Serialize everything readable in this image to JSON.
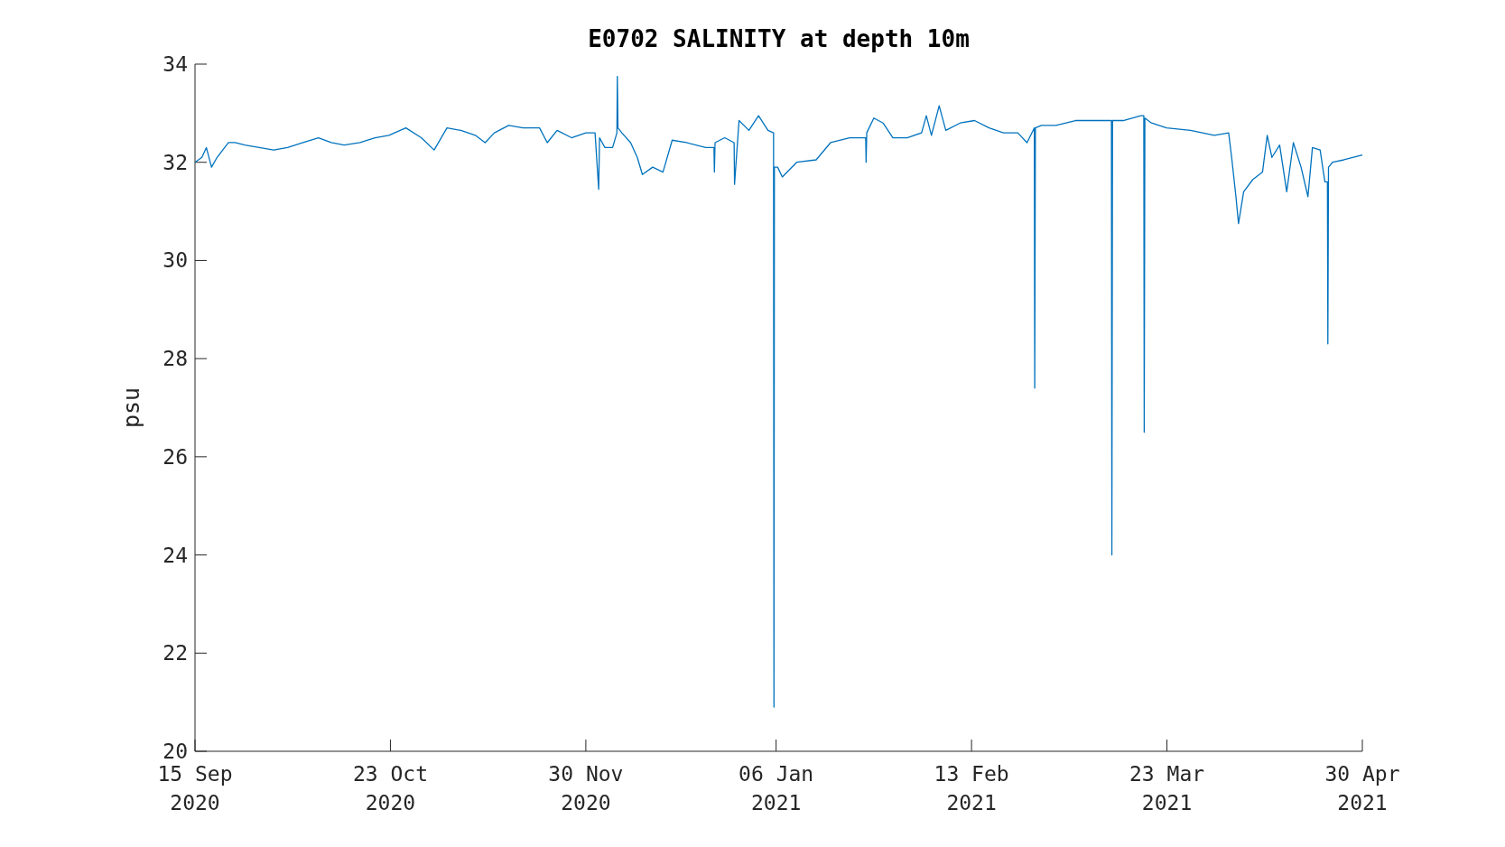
{
  "chart_data": {
    "type": "line",
    "title": "E0702 SALINITY at depth 10m",
    "ylabel": "psu",
    "xlim": [
      "2020-09-15",
      "2021-04-30"
    ],
    "xticks": [
      {
        "value": "2020-09-15",
        "label": "15 Sep\n2020"
      },
      {
        "value": "2020-10-23",
        "label": "23 Oct\n2020"
      },
      {
        "value": "2020-11-30",
        "label": "30 Nov\n2020"
      },
      {
        "value": "2021-01-06",
        "label": "06 Jan\n2021"
      },
      {
        "value": "2021-02-13",
        "label": "13 Feb\n2021"
      },
      {
        "value": "2021-03-23",
        "label": "23 Mar\n2021"
      },
      {
        "value": "2021-04-30",
        "label": "30 Apr\n2021"
      }
    ],
    "ylim": [
      20,
      34
    ],
    "yticks": [
      20,
      22,
      24,
      26,
      28,
      30,
      32,
      34
    ],
    "grid": false,
    "line_style": "solid",
    "series": [
      {
        "color": "#0072bd",
        "x": [
          "2020-09-15T00:00",
          "2020-09-16T08:00",
          "2020-09-17T05:00",
          "2020-09-18T05:00",
          "2020-09-19T07:00",
          "2020-09-21T12:00",
          "2020-09-22T19:00",
          "2020-09-24T17:00",
          "2020-09-27T12:00",
          "2020-09-30T07:00",
          "2020-10-03T00:00",
          "2020-10-06T00:00",
          "2020-10-09T00:00",
          "2020-10-11T12:00",
          "2020-10-14T00:00",
          "2020-10-17T02:00",
          "2020-10-20T00:00",
          "2020-10-22T17:00",
          "2020-10-26T00:00",
          "2020-10-29T00:00",
          "2020-10-31T12:00",
          "2020-11-03T00:00",
          "2020-11-05T17:00",
          "2020-11-08T12:00",
          "2020-11-10T10:00",
          "2020-11-12T05:00",
          "2020-11-15T00:00",
          "2020-11-17T19:00",
          "2020-11-21T00:00",
          "2020-11-22T12:00",
          "2020-11-24T10:00",
          "2020-11-27T05:00",
          "2020-11-30T00:00",
          "2020-12-01T19:00",
          "2020-12-02T12:00",
          "2020-12-02T16:00",
          "2020-12-03T17:00",
          "2020-12-05T05:00",
          "2020-12-06T01:00",
          "2020-12-06T03:00",
          "2020-12-06T06:00",
          "2020-12-07T00:00",
          "2020-12-08T17:00",
          "2020-12-10T00:00",
          "2020-12-11T00:00",
          "2020-12-13T00:00",
          "2020-12-15T00:00",
          "2020-12-16T19:00",
          "2020-12-19T14:00",
          "2020-12-23T07:00",
          "2020-12-24T22:00",
          "2020-12-25T00:00",
          "2020-12-25T03:00",
          "2020-12-27T00:00",
          "2020-12-28T20:00",
          "2020-12-28T22:00",
          "2020-12-29T19:00",
          "2020-12-31T17:00",
          "2021-01-02T14:00",
          "2021-01-04T10:00",
          "2021-01-05T12:00",
          "2021-01-05T14:00",
          "2021-01-05T16:00",
          "2021-01-06T07:00",
          "2021-01-07T05:00",
          "2021-01-10T00:00",
          "2021-01-13T19:00",
          "2021-01-16T14:00",
          "2021-01-20T07:00",
          "2021-01-23T10:00",
          "2021-01-23T12:00",
          "2021-01-23T15:00",
          "2021-01-25T00:00",
          "2021-01-26T19:00",
          "2021-01-28T17:00",
          "2021-01-31T12:00",
          "2021-02-03T07:00",
          "2021-02-04T05:00",
          "2021-02-05T05:00",
          "2021-02-06T17:00",
          "2021-02-08T00:00",
          "2021-02-10T19:00",
          "2021-02-13T14:00",
          "2021-02-16T10:00",
          "2021-02-19T05:00",
          "2021-02-22T00:00",
          "2021-02-23T19:00",
          "2021-02-25T05:00",
          "2021-02-25T07:00",
          "2021-02-25T10:00",
          "2021-02-26T14:00",
          "2021-03-01T10:00",
          "2021-03-05T05:00",
          "2021-03-09T00:00",
          "2021-03-12T05:00",
          "2021-03-12T07:00",
          "2021-03-12T10:00",
          "2021-03-14T12:00",
          "2021-03-17T22:00",
          "2021-03-18T12:00",
          "2021-03-18T14:00",
          "2021-03-18T17:00",
          "2021-03-20T00:00",
          "2021-03-22T22:00",
          "2021-03-27T14:00",
          "2021-04-01T05:00",
          "2021-04-04T00:00",
          "2021-04-04T14:00",
          "2021-04-05T10:00",
          "2021-04-05T22:00",
          "2021-04-06T22:00",
          "2021-04-08T17:00",
          "2021-04-10T14:00",
          "2021-04-11T12:00",
          "2021-04-12T10:00",
          "2021-04-13T22:00",
          "2021-04-15T07:00",
          "2021-04-16T14:00",
          "2021-04-18T02:00",
          "2021-04-19T10:00",
          "2021-04-20T07:00",
          "2021-04-21T19:00",
          "2021-04-22T17:00",
          "2021-04-23T05:00",
          "2021-04-23T07:00",
          "2021-04-23T10:00",
          "2021-04-24T05:00",
          "2021-04-26T10:00",
          "2021-04-30T00:00"
        ],
        "values": [
          32.0,
          32.1,
          32.3,
          31.9,
          32.1,
          32.4,
          32.4,
          32.35,
          32.3,
          32.25,
          32.3,
          32.4,
          32.5,
          32.4,
          32.35,
          32.4,
          32.5,
          32.55,
          32.7,
          32.5,
          32.25,
          32.7,
          32.65,
          32.55,
          32.4,
          32.6,
          32.75,
          32.7,
          32.7,
          32.4,
          32.65,
          32.5,
          32.6,
          32.6,
          31.45,
          32.5,
          32.3,
          32.3,
          32.6,
          33.75,
          32.7,
          32.6,
          32.4,
          32.1,
          31.75,
          31.9,
          31.8,
          32.45,
          32.4,
          32.3,
          32.3,
          31.8,
          32.4,
          32.5,
          32.4,
          31.55,
          32.85,
          32.65,
          32.95,
          32.65,
          32.6,
          20.9,
          31.9,
          31.9,
          31.7,
          32.0,
          32.05,
          32.4,
          32.5,
          32.5,
          32.0,
          32.6,
          32.9,
          32.8,
          32.5,
          32.5,
          32.6,
          32.95,
          32.55,
          33.15,
          32.65,
          32.8,
          32.85,
          32.7,
          32.6,
          32.6,
          32.4,
          32.7,
          27.4,
          32.7,
          32.75,
          32.75,
          32.85,
          32.85,
          32.85,
          24.0,
          32.85,
          32.85,
          32.95,
          32.95,
          26.5,
          32.9,
          32.8,
          32.7,
          32.65,
          32.55,
          32.6,
          32.1,
          31.3,
          30.75,
          31.4,
          31.65,
          31.8,
          32.55,
          32.1,
          32.35,
          31.4,
          32.4,
          31.9,
          31.3,
          32.3,
          32.25,
          31.6,
          31.6,
          28.3,
          31.9,
          32.0,
          32.05,
          32.15
        ]
      }
    ]
  }
}
